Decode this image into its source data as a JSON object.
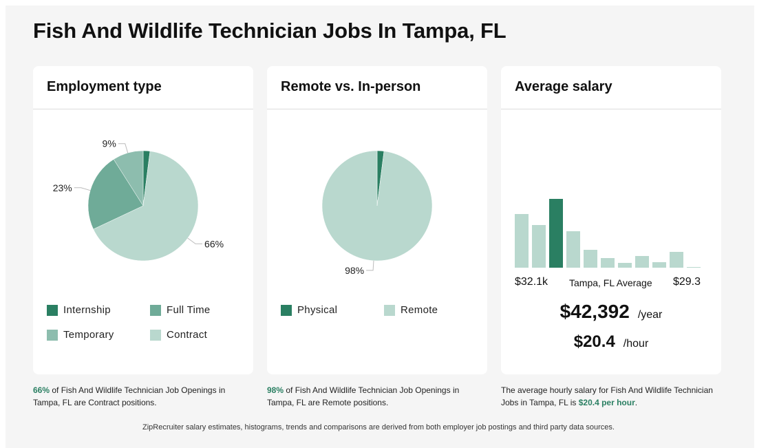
{
  "page": {
    "title": "Fish And Wildlife Technician Jobs In Tampa, FL"
  },
  "colors": {
    "dark": "#2a7f62",
    "mid": "#6fab98",
    "light": "#8dbdae",
    "pale": "#b9d8ce",
    "text": "#111111"
  },
  "cards": {
    "employment": {
      "title": "Employment type"
    },
    "remote": {
      "title": "Remote vs. In-person"
    },
    "salary": {
      "title": "Average salary"
    }
  },
  "chart_data": [
    {
      "type": "pie",
      "title": "Employment type",
      "slices": [
        {
          "name": "Internship",
          "value": 2,
          "label": "",
          "color": "#2a7f62"
        },
        {
          "name": "Contract",
          "value": 66,
          "label": "66%",
          "color": "#b9d8ce"
        },
        {
          "name": "Full Time",
          "value": 23,
          "label": "23%",
          "color": "#6fab98"
        },
        {
          "name": "Temporary",
          "value": 9,
          "label": "9%",
          "color": "#8dbdae"
        }
      ],
      "legend": [
        {
          "name": "Internship",
          "color": "#2a7f62"
        },
        {
          "name": "Full Time",
          "color": "#6fab98"
        },
        {
          "name": "Temporary",
          "color": "#8dbdae"
        },
        {
          "name": "Contract",
          "color": "#b9d8ce"
        }
      ]
    },
    {
      "type": "pie",
      "title": "Remote vs. In-person",
      "slices": [
        {
          "name": "Physical",
          "value": 2,
          "label": "",
          "color": "#2a7f62"
        },
        {
          "name": "Remote",
          "value": 98,
          "label": "98%",
          "color": "#b9d8ce"
        }
      ],
      "legend": [
        {
          "name": "Physical",
          "color": "#2a7f62"
        },
        {
          "name": "Remote",
          "color": "#b9d8ce"
        }
      ]
    },
    {
      "type": "bar",
      "title": "Average salary",
      "values": [
        78,
        62,
        100,
        53,
        26,
        14,
        7,
        17,
        8,
        23,
        1
      ],
      "highlight_index": 2,
      "range_min_label": "$32.1k",
      "range_max_label": "$29.3",
      "average_label": "Tampa, FL Average"
    }
  ],
  "salary": {
    "annual": "$42,392",
    "annual_unit": "/year",
    "hourly": "$20.4",
    "hourly_unit": "/hour"
  },
  "captions": {
    "employment": {
      "highlight": "66%",
      "rest": " of Fish And Wildlife Technician Job Openings in Tampa, FL are Contract positions."
    },
    "remote": {
      "highlight": "98%",
      "rest": " of Fish And Wildlife Technician Job Openings in Tampa, FL are Remote positions."
    },
    "salary": {
      "before": "The average hourly salary for Fish And Wildlife Technician Jobs in Tampa, FL is ",
      "highlight": "$20.4 per hour",
      "after": "."
    }
  },
  "footer": "ZipRecruiter salary estimates, histograms, trends and comparisons are derived from both employer job postings and third party data sources."
}
